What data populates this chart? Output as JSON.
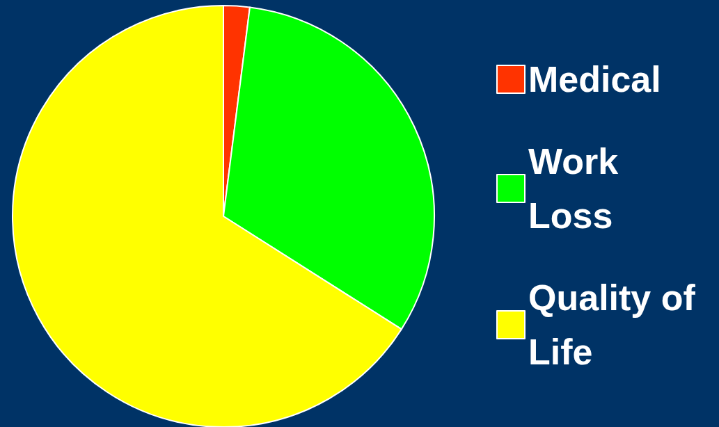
{
  "chart_data": {
    "type": "pie",
    "categories": [
      "Medical",
      "Work Loss",
      "Quality of Life"
    ],
    "values": [
      2,
      32,
      66
    ],
    "colors": [
      "#ff3300",
      "#00ff00",
      "#ffff00"
    ],
    "legend": "right"
  }
}
